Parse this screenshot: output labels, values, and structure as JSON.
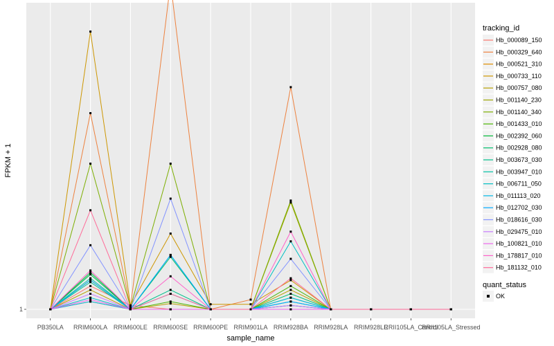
{
  "chart_data": {
    "type": "line",
    "title": "",
    "xlabel": "sample_name",
    "ylabel": "FPKM + 1",
    "y_tick_labels": [
      "1"
    ],
    "ylim": [
      1,
      1.75
    ],
    "grid": true,
    "categories": [
      "PB350LA",
      "RRIM600LA",
      "RRIM600LE",
      "RRIM600SE",
      "RRIM600PE",
      "RRIM901LA",
      "RRIM928BA",
      "RRIM928LA",
      "RRIM928LE",
      "RRII105LA_Control",
      "RRII105LA_Stressed"
    ],
    "legend": {
      "position": "right",
      "color_title": "tracking_id",
      "shape_title": "quant_status",
      "shape_entries": [
        "OK"
      ]
    },
    "series": [
      {
        "name": "Hb_000089_150",
        "color": "#F8766D",
        "values": [
          1.0,
          1.06,
          1.01,
          1.0,
          1.0,
          1.0,
          1.01,
          1.0,
          1.0,
          1.0,
          1.0
        ]
      },
      {
        "name": "Hb_000329_640",
        "color": "#ED813E",
        "values": [
          1.0,
          1.505,
          1.005,
          1.84,
          1.0,
          1.025,
          1.572,
          1.0,
          1.0,
          1.0,
          1.0
        ]
      },
      {
        "name": "Hb_000521_310",
        "color": "#DE8C00",
        "values": [
          1.0,
          1.02,
          1.0,
          1.0,
          1.0,
          1.0,
          1.0,
          1.0,
          1.0,
          1.0,
          1.0
        ]
      },
      {
        "name": "Hb_000733_110",
        "color": "#CD9600",
        "values": [
          1.0,
          1.715,
          1.01,
          1.195,
          1.013,
          1.013,
          1.075,
          1.0,
          1.0,
          1.0,
          1.0
        ]
      },
      {
        "name": "Hb_000757_080",
        "color": "#B79F00",
        "values": [
          1.0,
          1.05,
          1.0,
          1.015,
          1.0,
          1.0,
          1.05,
          1.0,
          1.0,
          1.0,
          1.0
        ]
      },
      {
        "name": "Hb_001140_230",
        "color": "#9DA700",
        "values": [
          1.0,
          1.075,
          1.0,
          1.0,
          1.0,
          1.0,
          1.275,
          1.0,
          1.0,
          1.0,
          1.0
        ]
      },
      {
        "name": "Hb_001140_340",
        "color": "#7CAE00",
        "values": [
          1.0,
          1.375,
          1.005,
          1.375,
          1.0,
          1.0,
          1.28,
          1.0,
          1.0,
          1.0,
          1.0
        ]
      },
      {
        "name": "Hb_001433_010",
        "color": "#49B500",
        "values": [
          1.0,
          1.09,
          1.0,
          1.02,
          1.0,
          1.0,
          1.06,
          1.0,
          1.0,
          1.0,
          1.0
        ]
      },
      {
        "name": "Hb_002392_060",
        "color": "#00BA38",
        "values": [
          1.0,
          1.095,
          1.0,
          1.0,
          1.0,
          1.0,
          1.03,
          1.0,
          1.0,
          1.0,
          1.0
        ]
      },
      {
        "name": "Hb_002928_080",
        "color": "#00BE6C",
        "values": [
          1.0,
          1.09,
          1.0,
          1.135,
          1.0,
          1.0,
          1.04,
          1.0,
          1.0,
          1.0,
          1.0
        ]
      },
      {
        "name": "Hb_003673_030",
        "color": "#00C08B",
        "values": [
          1.0,
          1.07,
          1.0,
          1.05,
          1.0,
          1.0,
          1.02,
          1.0,
          1.0,
          1.0,
          1.0
        ]
      },
      {
        "name": "Hb_003947_010",
        "color": "#00C1A7",
        "values": [
          1.0,
          1.08,
          1.0,
          1.14,
          1.0,
          1.0,
          1.01,
          1.0,
          1.0,
          1.0,
          1.0
        ]
      },
      {
        "name": "Hb_006711_050",
        "color": "#00BFC4",
        "values": [
          1.0,
          1.03,
          1.0,
          1.04,
          1.0,
          1.0,
          1.175,
          1.0,
          1.0,
          1.0,
          1.0
        ]
      },
      {
        "name": "Hb_011113_020",
        "color": "#00B8E7",
        "values": [
          1.0,
          1.02,
          1.0,
          1.0,
          1.0,
          1.0,
          1.03,
          1.0,
          1.0,
          1.0,
          1.0
        ]
      },
      {
        "name": "Hb_012702_030",
        "color": "#00A9FF",
        "values": [
          1.0,
          1.075,
          1.0,
          1.14,
          1.0,
          1.0,
          1.02,
          1.0,
          1.0,
          1.0,
          1.0
        ]
      },
      {
        "name": "Hb_018616_030",
        "color": "#8494FF",
        "values": [
          1.0,
          1.165,
          1.0,
          1.285,
          1.0,
          1.0,
          1.13,
          1.0,
          1.0,
          1.0,
          1.0
        ]
      },
      {
        "name": "Hb_029475_010",
        "color": "#C77CFF",
        "values": [
          1.0,
          1.04,
          1.0,
          1.0,
          1.0,
          1.0,
          1.01,
          1.0,
          1.0,
          1.0,
          1.0
        ]
      },
      {
        "name": "Hb_100821_010",
        "color": "#ED68ED",
        "values": [
          1.0,
          1.025,
          1.0,
          1.0,
          1.0,
          1.0,
          1.0,
          1.0,
          1.0,
          1.0,
          1.0
        ]
      },
      {
        "name": "Hb_178817_010",
        "color": "#FF61C9",
        "values": [
          1.0,
          1.1,
          1.0,
          1.085,
          1.0,
          1.0,
          1.2,
          1.0,
          1.0,
          1.0,
          1.0
        ]
      },
      {
        "name": "Hb_181132_010",
        "color": "#FF6A98",
        "values": [
          1.0,
          1.255,
          1.0,
          1.04,
          1.0,
          1.0,
          1.08,
          1.0,
          1.0,
          1.0,
          1.0
        ]
      }
    ]
  }
}
